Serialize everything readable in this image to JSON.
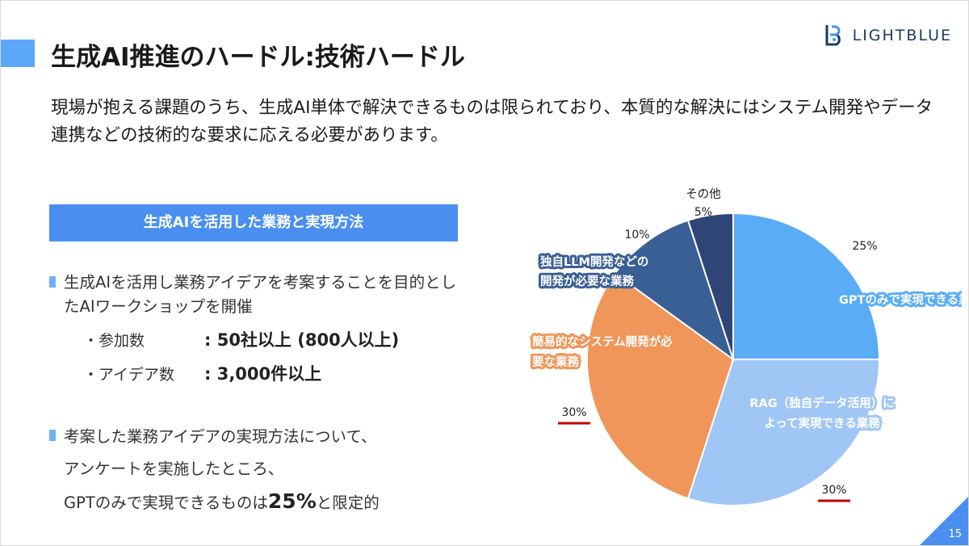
{
  "slide": {
    "title": "生成AI推進のハードル:技術ハードル",
    "logo_text": "LIGHTBLUE",
    "lead": "現場が抱える課題のうち、生成AI単体で解決できるものは限られており、本質的な解決にはシステム開発やデータ連携などの技術的な要求に応える必要があります。",
    "section_heading": "生成AIを活用した業務と実現方法",
    "bullet1": "生成AIを活用し業務アイデアを考案することを目的としたAIワークショップを開催",
    "sub1": {
      "label": "・参加数",
      "value": ": 50社以上 (800人以上)"
    },
    "sub2": {
      "label": "・アイデア数",
      "value": ": 3,000件以上"
    },
    "bullet2_line1": "考案した業務アイデアの実現方法について、",
    "bullet2_line2": "アンケートを実施したところ、",
    "bullet2_line3_pre": "GPTのみで実現できるものは",
    "bullet2_line3_big": "25%",
    "bullet2_line3_post": "と限定的",
    "page_number": "15"
  },
  "colors": {
    "accent": "#4a8ff0",
    "accent_light": "#6fb0f8",
    "underline": "#c00000"
  },
  "chart_data": {
    "type": "pie",
    "start_angle_deg": 0,
    "direction": "clockwise",
    "slices": [
      {
        "label": "GPTのみで実現できる業務",
        "value": 25,
        "pct_label": "25%",
        "color": "#5aacf6"
      },
      {
        "label": "RAG（独自データ活用）によって実現できる業務",
        "value": 30,
        "pct_label": "30%",
        "color": "#a0c6f6",
        "underlined": true
      },
      {
        "label": "簡易的なシステム開発が必要な業務",
        "value": 30,
        "pct_label": "30%",
        "color": "#f0965a",
        "underlined": true
      },
      {
        "label": "独自LLM開発などの開発が必要な業務",
        "value": 10,
        "pct_label": "10%",
        "color": "#3a5f95"
      },
      {
        "label": "その他",
        "value": 5,
        "pct_label": "5%",
        "color": "#2f4477"
      }
    ]
  }
}
